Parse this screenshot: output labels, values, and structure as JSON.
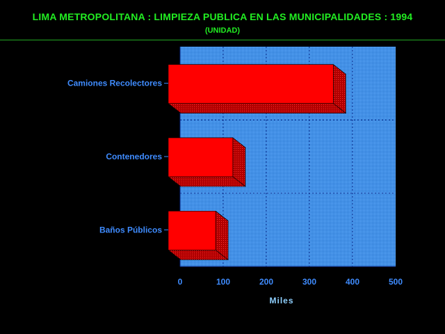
{
  "title": "LIMA METROPOLITANA : LIMPIEZA PUBLICA EN LAS MUNICIPALIDADES : 1994",
  "subtitle": "(UNIDAD)",
  "colors": {
    "title": "#22ee22",
    "plot_bg": "#3a8fe8",
    "bar_front": "#ff0000",
    "bar_top": "#c00000",
    "bar_side": "#a00000",
    "axis_text": "#3f8cff",
    "grid": "#0a2a8a"
  },
  "chart_data": {
    "type": "bar",
    "orientation": "horizontal",
    "categories": [
      "Camiones Recolectores",
      "Contenedores",
      "Baños Públicos"
    ],
    "values": [
      378,
      145,
      105
    ],
    "xlabel": "Miles",
    "ylabel": "",
    "xlim": [
      0,
      500
    ],
    "xticks": [
      "0",
      "100",
      "200",
      "300",
      "400",
      "500"
    ],
    "grid": true,
    "legend": "none"
  }
}
